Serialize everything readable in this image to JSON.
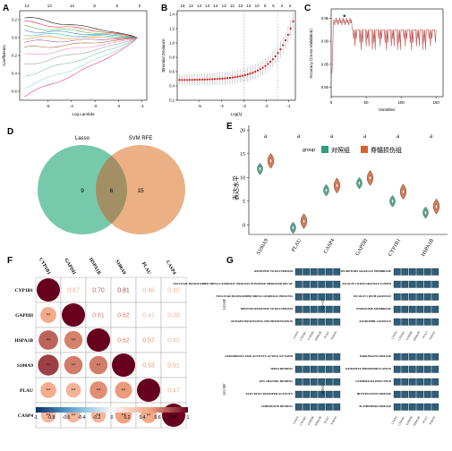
{
  "panel_labels": [
    "A",
    "B",
    "C",
    "D",
    "E",
    "F",
    "G"
  ],
  "chart_data": [
    {
      "panel": "A",
      "type": "line",
      "top_ticks": [
        "13",
        "13",
        "13",
        "8",
        "6",
        "0"
      ],
      "xlabel": "Log Lambda",
      "ylabel": "Coefficients",
      "xticks": [
        "-5",
        "-4",
        "-3",
        "-2",
        "-1"
      ],
      "yticks": [
        "-0.6",
        "-0.4",
        "-0.2",
        "0.0",
        "0.2"
      ],
      "xlim": [
        -6.2,
        -0.8
      ],
      "ylim": [
        -0.7,
        0.3
      ]
    },
    {
      "panel": "B",
      "type": "scatter",
      "top_ticks": [
        "15",
        "13",
        "13",
        "13",
        "14",
        "13",
        "12",
        "13",
        "13",
        "10",
        "8",
        "5",
        "3",
        "2"
      ],
      "xlabel": "Log(λ)",
      "ylabel": "Binomial Deviance",
      "xticks": [
        "-5",
        "-4",
        "-3",
        "-2",
        "-1"
      ],
      "yticks": [
        "0.2",
        "0.4",
        "0.6",
        "0.8",
        "1.0",
        "1.2",
        "1.4"
      ],
      "xlim": [
        -6.0,
        -0.7
      ],
      "ylim": [
        0.2,
        1.45
      ],
      "vlines": [
        -3.0,
        -1.5
      ]
    },
    {
      "panel": "C",
      "type": "line",
      "xlabel": "Variables",
      "ylabel": "Accuracy (Cross-Validation)",
      "xticks": [
        "0",
        "50",
        "100",
        "150"
      ],
      "yticks": [
        "0.80",
        "0.85",
        "0.90",
        "0.95"
      ],
      "xlim": [
        0,
        160
      ],
      "ylim": [
        0.78,
        0.97
      ],
      "best_point": [
        19,
        0.955
      ]
    },
    {
      "panel": "D",
      "type": "venn",
      "sets": [
        {
          "name": "Lasso",
          "only": "9",
          "color": "#5fbf9c"
        },
        {
          "name": "SVM RFE",
          "only": "15",
          "color": "#e8a36e"
        }
      ],
      "intersection": "6"
    },
    {
      "panel": "E",
      "type": "violin",
      "ylabel": "表达水平",
      "legend_title": "group",
      "legend": [
        {
          "name": "对照组",
          "color": "#2b9e7c"
        },
        {
          "name": "脊髓损伤组",
          "color": "#d95f2b"
        }
      ],
      "categories": [
        "S100A9",
        "PLAU",
        "CASP4",
        "GAPDH",
        "CYP1B1",
        "HSPA1B"
      ],
      "yticks": [
        "0",
        "5",
        "10",
        "15",
        "20"
      ],
      "ylim": [
        -2,
        21
      ],
      "significance": [
        "a",
        "a",
        "a",
        "a",
        "a",
        "a"
      ],
      "control_medians": [
        11.8,
        -0.6,
        7.3,
        8.8,
        5.0,
        2.6
      ],
      "sci_medians": [
        13.5,
        0.8,
        8.3,
        9.9,
        7.0,
        3.9
      ]
    },
    {
      "panel": "F",
      "type": "heatmap",
      "genes": [
        "CYP1B1",
        "GAPDH",
        "HSPA1B",
        "S100A9",
        "PLAU",
        "CASP4"
      ],
      "upper_values": [
        [
          "",
          "0.47",
          "0.70",
          "0.81",
          "0.46",
          "0.40"
        ],
        [
          "",
          "",
          "0.61",
          "0.62",
          "0.41",
          "0.39"
        ],
        [
          "",
          "",
          "",
          "0.62",
          "0.57",
          "0.40"
        ],
        [
          "",
          "",
          "",
          "",
          "0.53",
          "0.51"
        ],
        [
          "",
          "",
          "",
          "",
          "",
          "0.47"
        ],
        [
          "",
          "",
          "",
          "",
          "",
          ""
        ]
      ],
      "matrix": [
        [
          1.0,
          0.47,
          0.7,
          0.81,
          0.46,
          0.4
        ],
        [
          0.47,
          1.0,
          0.61,
          0.62,
          0.41,
          0.39
        ],
        [
          0.7,
          0.61,
          1.0,
          0.62,
          0.57,
          0.4
        ],
        [
          0.81,
          0.62,
          0.62,
          1.0,
          0.53,
          0.51
        ],
        [
          0.46,
          0.41,
          0.57,
          0.53,
          1.0,
          0.47
        ],
        [
          0.4,
          0.39,
          0.4,
          0.51,
          0.47,
          1.0
        ]
      ],
      "lower_mark": "**",
      "colorbar_ticks": [
        "-1",
        "-0.8",
        "-0.6",
        "-0.4",
        "-0.2",
        "0",
        "0.2",
        "0.4",
        "0.6",
        "0.8",
        "1"
      ]
    },
    {
      "panel": "G",
      "type": "heatmap",
      "column_labels": [
        "CASP4",
        "CYP1B1",
        "GAPDH",
        "HSPA1B",
        "PLAU",
        "S100A9"
      ],
      "blocks": [
        {
          "side_label": "GO-BP",
          "rows": [
            "RESPONSE TO BACTERIUM",
            "NUCLEAR-TRANSCRIBED MRNA CATABOLIC PROCESS NONSENSE MEDIATED DECAY",
            "NUCLEAR-TRANSCRIBED MRNA CATABOLIC PROCESS",
            "DEFENSE RESPONSE TO BACTERIUM",
            "ANTIGEN PROCESSING AND PRESENTATION"
          ]
        },
        {
          "side_label": "GO-CC",
          "rows": [
            "SECRETORY GRANULE MEMBRANE",
            "FICOLIN 1 RICH GRANULE LUMEN",
            "FICOLIN 1 RICH GRANULE",
            "ENDOSOME MEMBRANE",
            "AZUROPHIL GRANULE"
          ]
        },
        {
          "side_label": "GO-MF",
          "rows": [
            "OXIDOREDUCTASE ACTIVITY ACTING ON NADH",
            "MRNA BINDING",
            "ION CHANNEL BINDING",
            "ELECTRON TRANSFER ACTIVITY",
            "CHROMATIN BINDING"
          ]
        },
        {
          "side_label": "KEGG",
          "rows": [
            "PARKINSONS DISEASE",
            "OXIDATIVE PHOSPHORYLATION",
            "LEISHMANIA INFECTION",
            "HUNTINGTONS DISEASE",
            "ALZHEIMERS DISEASE"
          ]
        }
      ]
    }
  ]
}
